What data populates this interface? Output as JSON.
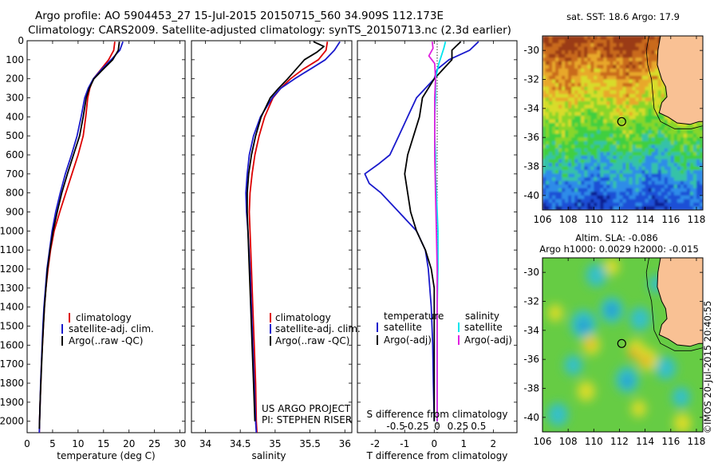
{
  "header": {
    "title_line1": "Argo profile: AO 5904453_27 15-Jul-2015 20150715_560 34.909S 112.173E",
    "title_line2": "Climatology: CARS2009. Satellite-adjusted climatology: synTS_20150713.nc (2.3d earlier)"
  },
  "credit": {
    "project": "US ARGO PROJECT",
    "pi": "PI: STEPHEN RISER",
    "stamp": "©IMOS 20-Jul-2015 20:40:55"
  },
  "colors": {
    "climatology": "#dd0000",
    "satellite": "#1a1acc",
    "argo": "#000000",
    "salinity_sat": "#00e5ee",
    "salinity_argo": "#e020e0",
    "land": "#f9c194",
    "coast": "#000000"
  },
  "chart_data": [
    {
      "type": "line",
      "xlabel": "temperature (deg C)",
      "ylabel": "",
      "xlim": [
        0,
        31
      ],
      "ylim": [
        2060,
        0
      ],
      "xticks": [
        0,
        5,
        10,
        15,
        20,
        25,
        30
      ],
      "yticks": [
        0,
        100,
        200,
        300,
        400,
        500,
        600,
        700,
        800,
        900,
        1000,
        1100,
        1200,
        1300,
        1400,
        1500,
        1600,
        1700,
        1800,
        1900,
        2000
      ],
      "legend": [
        "climatology",
        "satellite-adj. clim.",
        "Argo(..raw -QC)"
      ],
      "series": [
        {
          "name": "climatology",
          "depth": [
            5,
            50,
            100,
            150,
            200,
            250,
            300,
            400,
            500,
            600,
            700,
            800,
            900,
            1000,
            1100,
            1200,
            1300,
            1400,
            1500,
            1600,
            1700,
            1800,
            1900,
            2000,
            2060
          ],
          "values": [
            17.2,
            17.0,
            16.0,
            14.5,
            13.0,
            12.3,
            11.9,
            11.5,
            11.0,
            10.0,
            8.8,
            7.6,
            6.4,
            5.3,
            4.6,
            4.1,
            3.7,
            3.4,
            3.2,
            3.0,
            2.8,
            2.7,
            2.55,
            2.45,
            2.4
          ]
        },
        {
          "name": "satellite-adj. clim.",
          "depth": [
            5,
            50,
            100,
            150,
            200,
            250,
            300,
            400,
            500,
            600,
            700,
            800,
            900,
            1000,
            1100,
            1200,
            1300,
            1400,
            1500,
            1600,
            1700,
            1800,
            1900,
            2000,
            2060
          ],
          "values": [
            18.8,
            18.2,
            16.5,
            14.6,
            13.0,
            12.0,
            11.3,
            10.6,
            9.8,
            8.7,
            7.5,
            6.5,
            5.6,
            4.9,
            4.4,
            3.9,
            3.6,
            3.3,
            3.1,
            2.95,
            2.8,
            2.65,
            2.55,
            2.45,
            2.4
          ]
        },
        {
          "name": "Argo(..raw -QC)",
          "depth": [
            5,
            50,
            100,
            150,
            200,
            250,
            300,
            400,
            500,
            600,
            700,
            800,
            900,
            1000,
            1100,
            1200,
            1300,
            1400,
            1500,
            1600,
            1700,
            1800,
            1900,
            2000,
            2040
          ],
          "values": [
            18.1,
            17.9,
            16.8,
            14.9,
            13.1,
            12.2,
            11.6,
            11.0,
            10.3,
            9.1,
            7.9,
            6.8,
            5.9,
            5.1,
            4.5,
            4.0,
            3.7,
            3.4,
            3.2,
            3.0,
            2.85,
            2.7,
            2.55,
            2.45,
            2.4
          ]
        }
      ]
    },
    {
      "type": "line",
      "xlabel": "salinity",
      "ylabel": "",
      "xlim": [
        33.8,
        36.1
      ],
      "ylim": [
        2060,
        0
      ],
      "xticks": [
        34,
        34.5,
        35,
        35.5,
        36
      ],
      "legend": [
        "climatology",
        "satellite-adj. clim.",
        "Argo(..raw -QC)"
      ],
      "series": [
        {
          "name": "climatology",
          "depth": [
            5,
            50,
            100,
            150,
            200,
            250,
            300,
            400,
            500,
            600,
            700,
            800,
            900,
            1000,
            1200,
            1400,
            1600,
            1800,
            2000,
            2060
          ],
          "values": [
            35.75,
            35.73,
            35.62,
            35.4,
            35.22,
            35.08,
            34.97,
            34.85,
            34.77,
            34.71,
            34.67,
            34.64,
            34.63,
            34.64,
            34.66,
            34.68,
            34.7,
            34.72,
            34.73,
            34.74
          ]
        },
        {
          "name": "satellite-adj. clim.",
          "depth": [
            5,
            50,
            100,
            150,
            200,
            250,
            300,
            400,
            500,
            600,
            700,
            800,
            900,
            1000,
            1200,
            1400,
            1600,
            1800,
            2000,
            2060
          ],
          "values": [
            35.93,
            35.85,
            35.72,
            35.5,
            35.28,
            35.08,
            34.96,
            34.79,
            34.69,
            34.63,
            34.6,
            34.58,
            34.59,
            34.61,
            34.64,
            34.66,
            34.68,
            34.7,
            34.72,
            34.73
          ]
        },
        {
          "name": "Argo(..raw -QC)",
          "depth": [
            5,
            30,
            60,
            100,
            150,
            200,
            250,
            300,
            400,
            500,
            600,
            700,
            800,
            900,
            1000,
            1200,
            1400,
            1600,
            1800,
            2000
          ],
          "values": [
            35.55,
            35.7,
            35.6,
            35.42,
            35.3,
            35.18,
            35.05,
            34.93,
            34.8,
            34.72,
            34.66,
            34.62,
            34.6,
            34.6,
            34.61,
            34.63,
            34.65,
            34.67,
            34.69,
            34.71
          ]
        }
      ]
    },
    {
      "type": "line",
      "xlabel": "T difference from climatology",
      "top_label": "S difference from climatology",
      "xlim": [
        -2.6,
        2.8
      ],
      "ylim": [
        2060,
        0
      ],
      "xticks": [
        -2,
        -1,
        0,
        1,
        2
      ],
      "s_ticks": [
        -0.5,
        -0.25,
        0,
        0.25,
        0.5
      ],
      "legend_left_title": "temperature",
      "legend_right_title": "salinity",
      "legend_left": [
        "satellite",
        "Argo(-adj)"
      ],
      "legend_right": [
        "satellite",
        "Argo(-adj)"
      ],
      "series": [
        {
          "name": "temperature satellite",
          "depth": [
            5,
            50,
            100,
            150,
            200,
            300,
            400,
            500,
            600,
            650,
            700,
            750,
            800,
            900,
            1000,
            1100,
            1200,
            1400,
            1600,
            1800,
            2000
          ],
          "values": [
            1.5,
            1.2,
            0.5,
            0.1,
            0.0,
            -0.6,
            -0.9,
            -1.2,
            -1.5,
            -1.9,
            -2.35,
            -2.2,
            -1.8,
            -1.2,
            -0.6,
            -0.3,
            -0.2,
            -0.1,
            -0.05,
            -0.03,
            0.0
          ]
        },
        {
          "name": "temperature Argo(-adj)",
          "depth": [
            5,
            50,
            100,
            200,
            300,
            400,
            500,
            600,
            700,
            800,
            900,
            1000,
            1100,
            1200,
            1300,
            1400,
            1600,
            1800,
            2000
          ],
          "values": [
            0.9,
            0.6,
            0.6,
            0.0,
            -0.4,
            -0.5,
            -0.7,
            -0.9,
            -1.0,
            -0.9,
            -0.8,
            -0.6,
            -0.3,
            -0.1,
            0.0,
            0.0,
            0.0,
            0.0,
            0.0
          ]
        },
        {
          "name": "salinity satellite",
          "depth": [
            5,
            40,
            80,
            120,
            160,
            200,
            300,
            400,
            500,
            600,
            700,
            800,
            900,
            1000,
            1200,
            1400,
            1600,
            1800,
            2000
          ],
          "values": [
            0.1,
            0.08,
            0.05,
            0.02,
            0.0,
            -0.02,
            -0.02,
            -0.03,
            -0.03,
            -0.02,
            -0.02,
            -0.01,
            0.0,
            0.01,
            0.01,
            0.0,
            0.0,
            0.0,
            0.0
          ]
        },
        {
          "name": "salinity Argo(-adj)",
          "depth": [
            5,
            40,
            80,
            120,
            200,
            300,
            400,
            600,
            800,
            1000,
            1200,
            1400,
            1600,
            1800,
            2000
          ],
          "values": [
            -0.06,
            -0.05,
            -0.1,
            -0.03,
            -0.02,
            -0.03,
            -0.03,
            -0.03,
            -0.02,
            -0.01,
            0.0,
            0.0,
            0.0,
            0.0,
            0.0
          ]
        }
      ]
    },
    {
      "type": "heatmap",
      "title": "sat. SST: 18.6  Argo: 17.9",
      "xlim": [
        106,
        118.5
      ],
      "ylim": [
        -41,
        -29
      ],
      "xticks": [
        106,
        108,
        110,
        112,
        114,
        116,
        118
      ],
      "yticks": [
        -30,
        -32,
        -34,
        -36,
        -38,
        -40
      ],
      "argo_position": [
        112.173,
        -34.909
      ]
    },
    {
      "type": "heatmap",
      "title": "Altim. SLA: -0.086",
      "subtitle": "Argo h1000: 0.0029 h2000: -0.015",
      "xlim": [
        106,
        118.5
      ],
      "ylim": [
        -41,
        -29
      ],
      "xticks": [
        106,
        108,
        110,
        112,
        114,
        116,
        118
      ],
      "yticks": [
        -30,
        -32,
        -34,
        -36,
        -38,
        -40
      ],
      "argo_position": [
        112.173,
        -34.909
      ]
    }
  ]
}
